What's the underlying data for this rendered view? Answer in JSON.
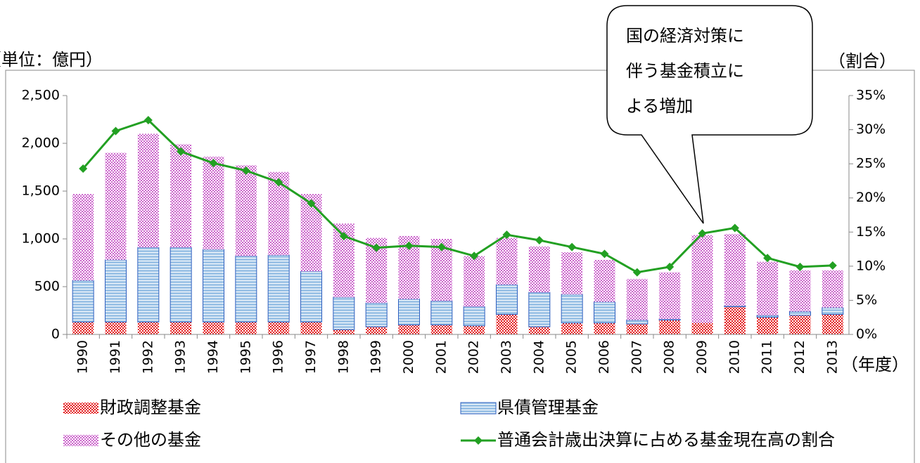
{
  "chart_data": {
    "type": "bar-line",
    "y_label": "（単位：億円）",
    "y2_label": "（割合）",
    "x_label": "（年度）",
    "annotation": [
      "国の経済対策に",
      "伴う基金積立に",
      "よる増加"
    ],
    "categories": [
      "1990",
      "1991",
      "1992",
      "1993",
      "1994",
      "1995",
      "1996",
      "1997",
      "1998",
      "1999",
      "2000",
      "2001",
      "2002",
      "2003",
      "2004",
      "2005",
      "2006",
      "2007",
      "2008",
      "2009",
      "2010",
      "2011",
      "2012",
      "2013"
    ],
    "series": [
      {
        "name": "財政調整基金",
        "color": "#e31a1c",
        "values": [
          130,
          130,
          130,
          130,
          130,
          130,
          130,
          130,
          50,
          80,
          100,
          100,
          90,
          210,
          80,
          120,
          120,
          110,
          150,
          120,
          290,
          180,
          200,
          210
        ]
      },
      {
        "name": "県債管理基金",
        "color": "#9dc3e6",
        "values": [
          435,
          650,
          780,
          780,
          760,
          690,
          700,
          530,
          340,
          250,
          270,
          250,
          200,
          310,
          360,
          300,
          220,
          40,
          10,
          0,
          10,
          20,
          40,
          70
        ]
      },
      {
        "name": "その他の基金",
        "color": "#cc66cc",
        "values": [
          905,
          1120,
          1190,
          1080,
          970,
          950,
          870,
          810,
          770,
          680,
          660,
          650,
          530,
          490,
          480,
          440,
          440,
          430,
          490,
          920,
          750,
          560,
          430,
          390
        ]
      },
      {
        "name": "普通会計歳出決算に占める基金現在高の割合",
        "color": "#22a022",
        "axis": "y2",
        "values": [
          24.3,
          29.8,
          31.4,
          26.8,
          25.1,
          24.0,
          22.3,
          19.2,
          14.4,
          12.7,
          13.0,
          12.8,
          11.5,
          14.6,
          13.8,
          12.8,
          11.8,
          9.1,
          9.9,
          14.8,
          15.6,
          11.2,
          9.9,
          10.1
        ]
      }
    ],
    "ylim": [
      0,
      2500
    ],
    "yticks": [
      0,
      500,
      {
        "value": 1000,
        "label": "1,000"
      },
      {
        "value": 1500,
        "label": "1,500"
      },
      {
        "value": 2000,
        "label": "2,000"
      },
      {
        "value": 2500,
        "label": "2,500"
      }
    ],
    "y2lim": [
      0,
      35
    ],
    "y2ticks": [
      {
        "value": 0,
        "label": "0%"
      },
      {
        "value": 5,
        "label": "5%"
      },
      {
        "value": 10,
        "label": "10%"
      },
      {
        "value": 15,
        "label": "15%"
      },
      {
        "value": 20,
        "label": "20%"
      },
      {
        "value": 25,
        "label": "25%"
      },
      {
        "value": 30,
        "label": "30%"
      },
      {
        "value": 35,
        "label": "35%"
      }
    ]
  }
}
